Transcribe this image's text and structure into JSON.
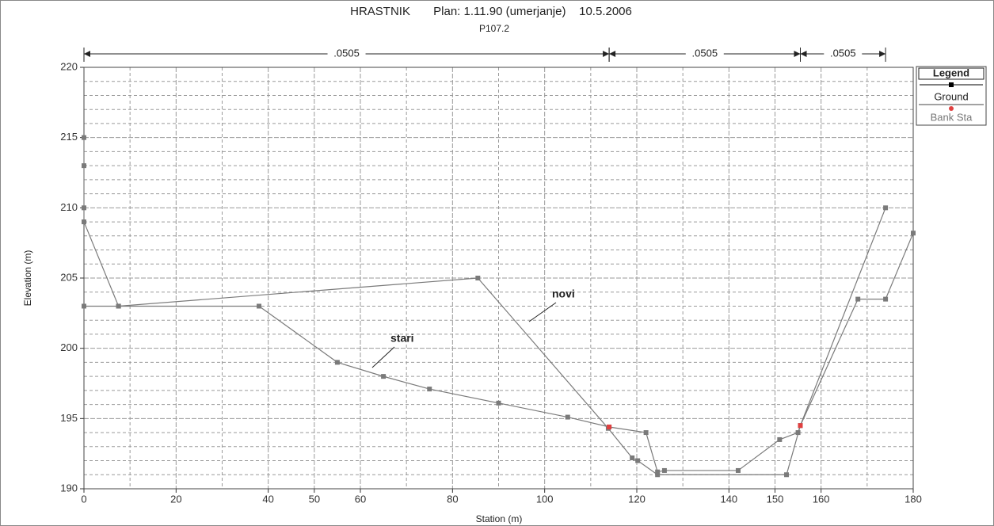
{
  "chart_data": {
    "type": "cross_section",
    "title": "HRASTNIK       Plan: 1.11.90 (umerjanje)    10.5.2006",
    "subtitle": "P107.2",
    "x_label": "Station (m)",
    "y_label": "Elevation (m)",
    "xlim": [
      0,
      180
    ],
    "xticks": [
      0,
      20,
      40,
      50,
      60,
      80,
      100,
      120,
      140,
      150,
      160,
      180
    ],
    "ylim": [
      190,
      220
    ],
    "yticks": [
      190,
      195,
      200,
      205,
      210,
      215,
      220
    ],
    "grid": true,
    "n_zones": [
      {
        "from": 0,
        "to": 114,
        "label": ".0505"
      },
      {
        "from": 114,
        "to": 155.5,
        "label": ".0505"
      },
      {
        "from": 155.5,
        "to": 174,
        "label": ".0505"
      }
    ],
    "series": [
      {
        "name": "novi",
        "color": "#7a7a7a",
        "x": [
          0,
          0,
          0,
          0,
          7.5,
          85.5,
          113.8,
          119,
          120.2,
          124.5,
          152.5,
          155.5,
          174
        ],
        "values": [
          215,
          213,
          210,
          209,
          203,
          205,
          194.3,
          192.2,
          192,
          191,
          191,
          194.5,
          210
        ]
      },
      {
        "name": "stari",
        "color": "#7a7a7a",
        "x": [
          0,
          7.5,
          38,
          55,
          65,
          75,
          90,
          105,
          114,
          122,
          124.5,
          126,
          142,
          151,
          155,
          155.5,
          168,
          174,
          180
        ],
        "values": [
          203,
          203,
          203,
          199,
          198,
          197.1,
          196.1,
          195.1,
          194.4,
          194,
          191.2,
          191.3,
          191.3,
          193.5,
          194,
          194.5,
          203.5,
          203.5,
          208.2
        ]
      }
    ],
    "bank_stations": {
      "name": "Bank Sta",
      "color": "#e04040",
      "x": [
        114,
        155.5
      ],
      "values": [
        194.4,
        194.5
      ]
    },
    "legend": {
      "title": "Legend",
      "ground": "Ground",
      "bank": "Bank Sta",
      "position": "right"
    }
  }
}
